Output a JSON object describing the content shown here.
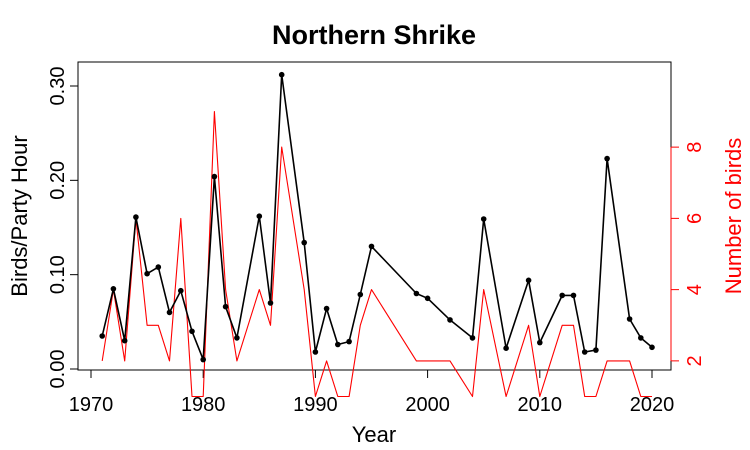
{
  "chart_data": {
    "type": "line",
    "title": "Northern Shrike",
    "xlabel": "Year",
    "ylabel": "Birds/Party Hour",
    "y2label": "Number of birds",
    "xlim": [
      1970,
      2020
    ],
    "ylim": [
      0.0,
      0.3
    ],
    "y2lim": [
      1,
      9
    ],
    "x_ticks": [
      1970,
      1980,
      1990,
      2000,
      2010,
      2020
    ],
    "y_ticks": [
      "0.00",
      "0.10",
      "0.20",
      "0.30"
    ],
    "y2_ticks": [
      "2",
      "4",
      "6",
      "8"
    ],
    "colors": {
      "rate": "#000000",
      "count": "#ff0000",
      "axis": "#000000",
      "axis2": "#ff0000"
    },
    "series": [
      {
        "name": "Birds/Party Hour",
        "axis": "left",
        "style": "line+points",
        "x": [
          1971,
          1972,
          1973,
          1974,
          1975,
          1976,
          1977,
          1978,
          1979,
          1980,
          1981,
          1982,
          1983,
          1985,
          1986,
          1987,
          1989,
          1990,
          1991,
          1992,
          1993,
          1994,
          1995,
          1999,
          2000,
          2002,
          2004,
          2005,
          2007,
          2009,
          2010,
          2012,
          2013,
          2014,
          2015,
          2016,
          2018,
          2019,
          2020
        ],
        "values": [
          0.035,
          0.085,
          0.03,
          0.161,
          0.101,
          0.108,
          0.06,
          0.083,
          0.04,
          0.01,
          0.204,
          0.066,
          0.033,
          0.162,
          0.07,
          0.312,
          0.134,
          0.018,
          0.064,
          0.026,
          0.029,
          0.079,
          0.13,
          0.08,
          0.075,
          0.052,
          0.033,
          0.159,
          0.022,
          0.094,
          0.028,
          0.078,
          0.078,
          0.018,
          0.02,
          0.223,
          0.053,
          0.033,
          0.023
        ]
      },
      {
        "name": "Number of birds",
        "axis": "right",
        "style": "line",
        "x": [
          1971,
          1972,
          1973,
          1974,
          1975,
          1976,
          1977,
          1978,
          1979,
          1980,
          1981,
          1982,
          1983,
          1985,
          1986,
          1987,
          1989,
          1990,
          1991,
          1992,
          1993,
          1994,
          1995,
          1999,
          2000,
          2002,
          2004,
          2005,
          2007,
          2009,
          2010,
          2012,
          2013,
          2014,
          2015,
          2016,
          2018,
          2019,
          2020
        ],
        "values": [
          2,
          4,
          2,
          6,
          3,
          3,
          2,
          6,
          1,
          1,
          9,
          4,
          2,
          4,
          3,
          8,
          4,
          1,
          2,
          1,
          1,
          3,
          4,
          2,
          2,
          2,
          1,
          4,
          1,
          3,
          1,
          3,
          3,
          1,
          1,
          2,
          2,
          1,
          1
        ]
      }
    ]
  }
}
